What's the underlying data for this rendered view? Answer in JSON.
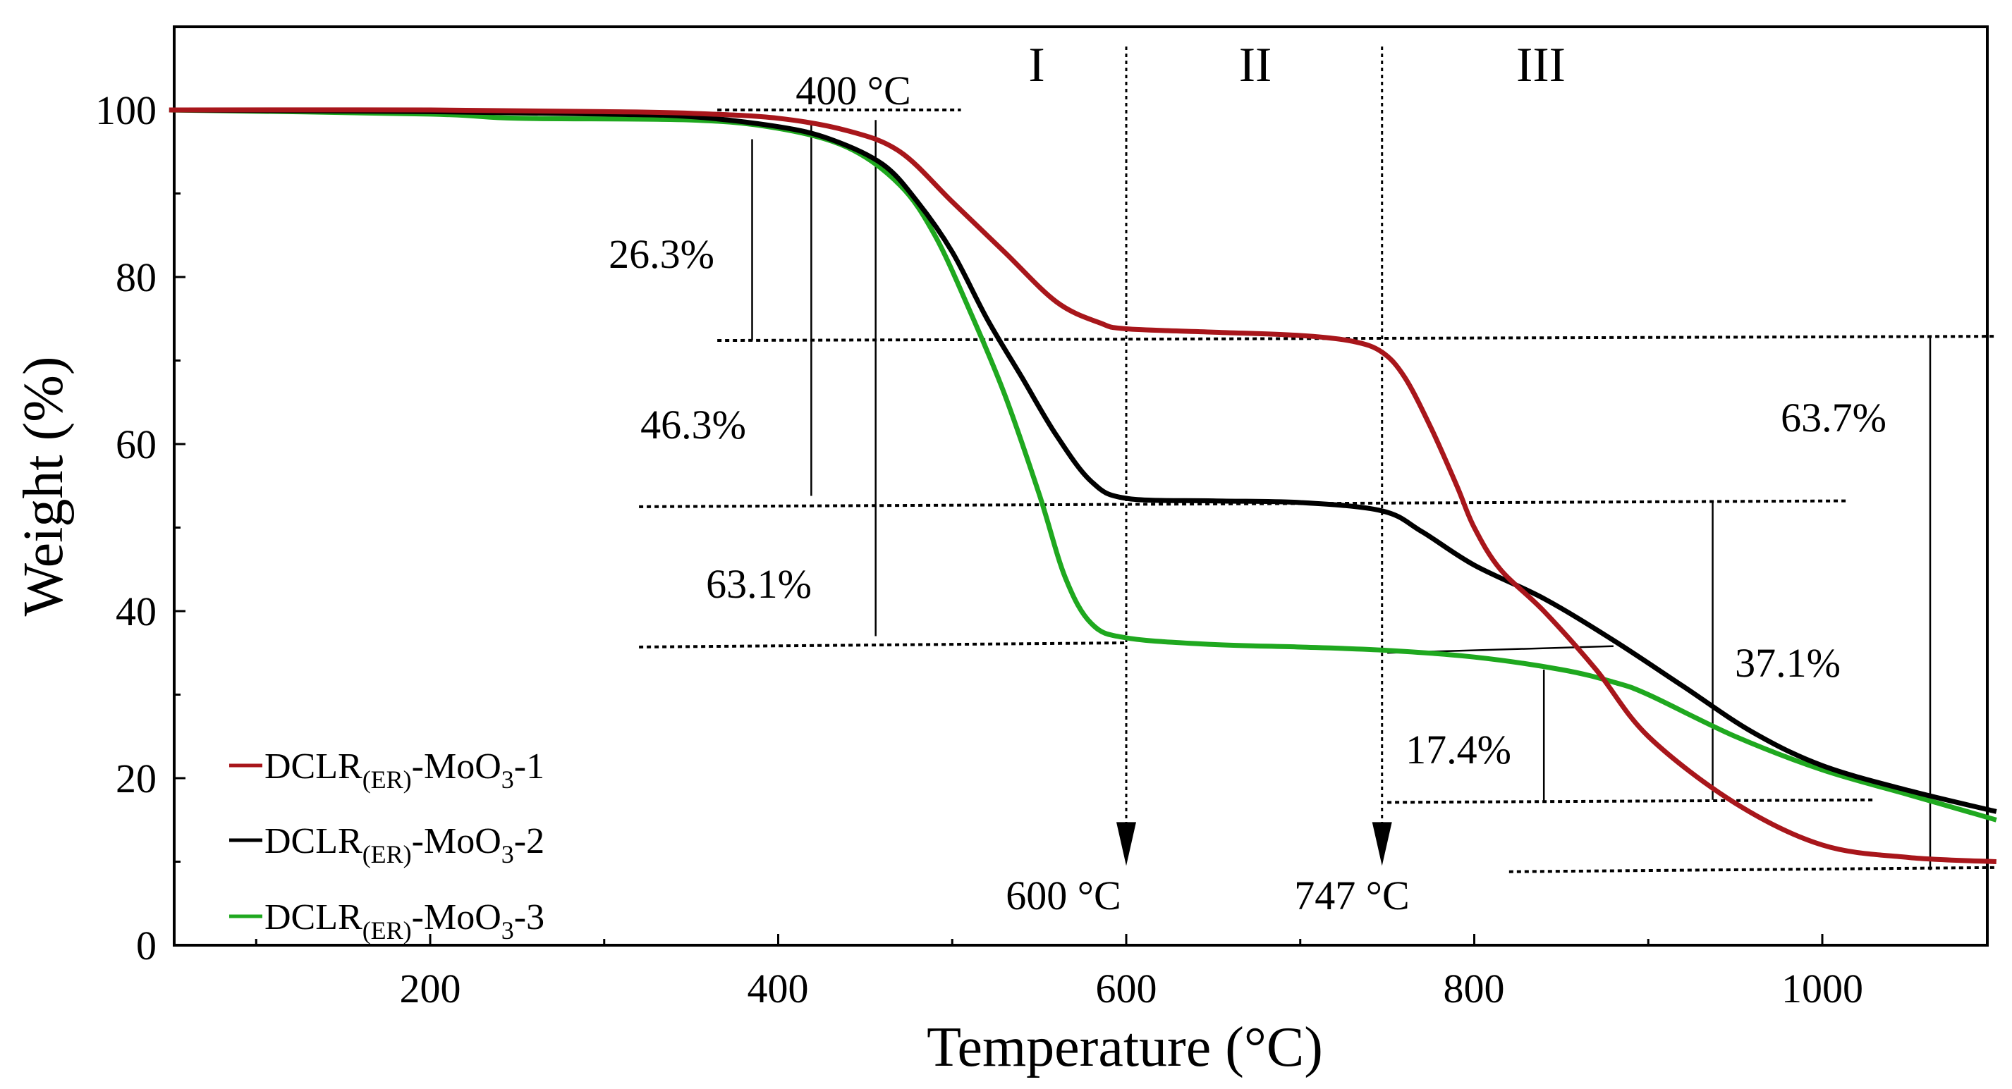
{
  "chart_data": {
    "type": "line",
    "title": "",
    "xlabel": "Temperature (°C)",
    "ylabel": "Weight (%)",
    "xlim": [
      50,
      1100
    ],
    "ylim": [
      0,
      110
    ],
    "xticks": [
      200,
      400,
      600,
      800,
      1000
    ],
    "yticks": [
      0,
      20,
      40,
      60,
      80,
      100
    ],
    "xtick_labels": [
      "200",
      "400",
      "600",
      "800",
      "1000"
    ],
    "ytick_labels": [
      "0",
      "20",
      "40",
      "60",
      "80",
      "100"
    ],
    "legend_position": "bottom-left",
    "series": [
      {
        "name": "DCLR(ER)-MoO3-1",
        "legend_parts": [
          "DCLR",
          "(ER)",
          "-MoO",
          "3",
          "-1"
        ],
        "color": "#a8161b",
        "x": [
          50,
          200,
          300,
          350,
          400,
          440,
          470,
          500,
          530,
          560,
          585,
          600,
          650,
          700,
          730,
          747,
          760,
          775,
          790,
          800,
          815,
          840,
          870,
          900,
          950,
          1000,
          1050,
          1100
        ],
        "y": [
          100,
          100,
          99.8,
          99.6,
          99,
          97.5,
          95,
          89,
          83,
          77,
          74.5,
          73.8,
          73.4,
          73,
          72.3,
          71,
          68,
          62,
          55,
          50,
          45,
          40,
          33,
          25,
          17,
          12,
          10.5,
          10
        ]
      },
      {
        "name": "DCLR(ER)-MoO3-2",
        "legend_parts": [
          "DCLR",
          "(ER)",
          "-MoO",
          "3",
          "-2"
        ],
        "color": "#000000",
        "x": [
          50,
          200,
          300,
          350,
          400,
          430,
          460,
          480,
          500,
          520,
          540,
          560,
          580,
          600,
          650,
          700,
          747,
          770,
          800,
          840,
          880,
          920,
          960,
          1000,
          1050,
          1100
        ],
        "y": [
          100,
          99.8,
          99.5,
          99.2,
          98,
          96.5,
          93.5,
          89,
          83,
          75,
          68,
          61,
          55.5,
          53.5,
          53.2,
          53,
          52,
          49.5,
          45.5,
          41.5,
          36.5,
          31,
          25.5,
          21.5,
          18.5,
          16
        ]
      },
      {
        "name": "DCLR(ER)-MoO3-3",
        "legend_parts": [
          "DCLR",
          "(ER)",
          "-MoO",
          "3",
          "-3"
        ],
        "color": "#1fa81f",
        "x": [
          50,
          200,
          250,
          350,
          400,
          440,
          470,
          490,
          510,
          530,
          550,
          565,
          580,
          600,
          650,
          700,
          750,
          800,
          850,
          880,
          900,
          950,
          1000,
          1050,
          1100
        ],
        "y": [
          100,
          99.5,
          99,
          98.8,
          97.8,
          95.5,
          91,
          85,
          76,
          66,
          54,
          44,
          38.5,
          36.8,
          36,
          35.7,
          35.3,
          34.5,
          33,
          31.5,
          30,
          25,
          21,
          18,
          15
        ]
      }
    ],
    "annotations": {
      "regions": [
        "I",
        "II",
        "III"
      ],
      "temperatures": [
        "400 °C",
        "600 °C",
        "747 °C"
      ],
      "mass_losses": [
        "26.3%",
        "46.3%",
        "63.1%",
        "17.4%",
        "37.1%",
        "63.7%"
      ]
    }
  }
}
